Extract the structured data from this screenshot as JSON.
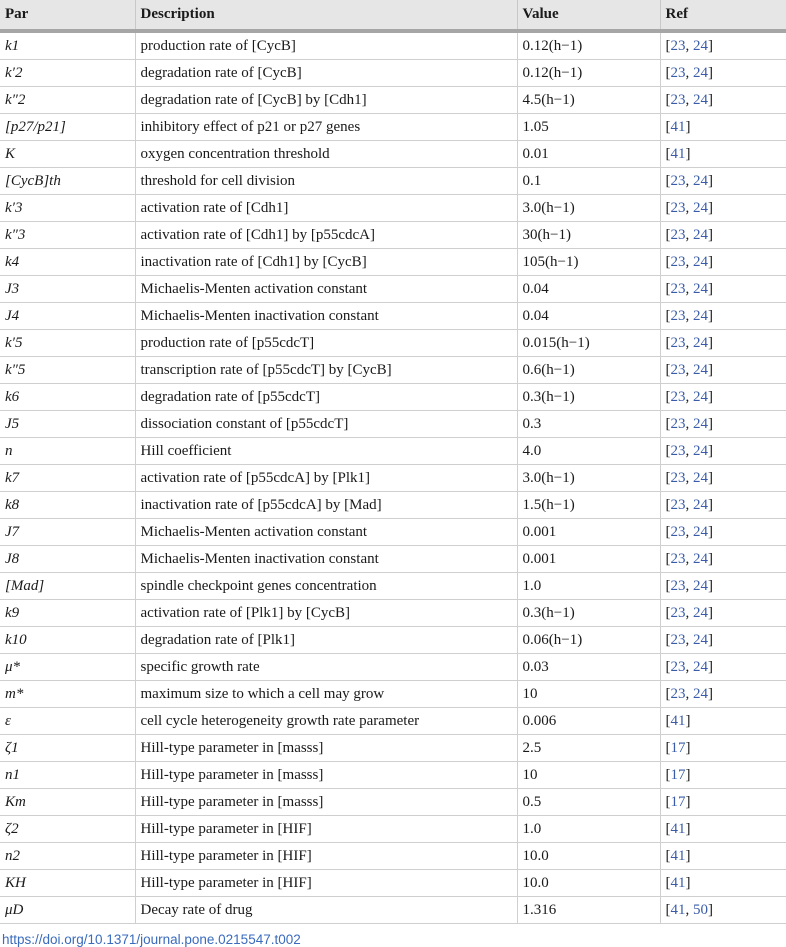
{
  "headers": [
    "Par",
    "Description",
    "Value",
    "Ref"
  ],
  "rows": [
    {
      "par": "k1",
      "desc": "production rate of [CycB]",
      "val": "0.12(h−1)",
      "ref": [
        "23",
        "24"
      ]
    },
    {
      "par": "k′2",
      "desc": "degradation rate of [CycB]",
      "val": "0.12(h−1)",
      "ref": [
        "23",
        "24"
      ]
    },
    {
      "par": "k″2",
      "desc": "degradation rate of [CycB] by [Cdh1]",
      "val": "4.5(h−1)",
      "ref": [
        "23",
        "24"
      ]
    },
    {
      "par": "[p27/p21]",
      "desc": "inhibitory effect of p21 or p27 genes",
      "val": "1.05",
      "ref": [
        "41"
      ]
    },
    {
      "par": "K",
      "desc": "oxygen concentration threshold",
      "val": "0.01",
      "ref": [
        "41"
      ]
    },
    {
      "par": "[CycB]th",
      "desc": "threshold for cell division",
      "val": "0.1",
      "ref": [
        "23",
        "24"
      ]
    },
    {
      "par": "k′3",
      "desc": "activation rate of [Cdh1]",
      "val": "3.0(h−1)",
      "ref": [
        "23",
        "24"
      ]
    },
    {
      "par": "k″3",
      "desc": "activation rate of [Cdh1] by [p55cdcA]",
      "val": "30(h−1)",
      "ref": [
        "23",
        "24"
      ]
    },
    {
      "par": "k4",
      "desc": "inactivation rate of [Cdh1] by [CycB]",
      "val": "105(h−1)",
      "ref": [
        "23",
        "24"
      ]
    },
    {
      "par": "J3",
      "desc": "Michaelis-Menten activation constant",
      "val": "0.04",
      "ref": [
        "23",
        "24"
      ]
    },
    {
      "par": "J4",
      "desc": "Michaelis-Menten inactivation constant",
      "val": "0.04",
      "ref": [
        "23",
        "24"
      ]
    },
    {
      "par": "k′5",
      "desc": "production rate of [p55cdcT]",
      "val": "0.015(h−1)",
      "ref": [
        "23",
        "24"
      ]
    },
    {
      "par": "k″5",
      "desc": "transcription rate of [p55cdcT] by [CycB]",
      "val": "0.6(h−1)",
      "ref": [
        "23",
        "24"
      ]
    },
    {
      "par": "k6",
      "desc": "degradation rate of [p55cdcT]",
      "val": "0.3(h−1)",
      "ref": [
        "23",
        "24"
      ]
    },
    {
      "par": "J5",
      "desc": "dissociation constant of [p55cdcT]",
      "val": "0.3",
      "ref": [
        "23",
        "24"
      ]
    },
    {
      "par": "n",
      "desc": "Hill coefficient",
      "val": "4.0",
      "ref": [
        "23",
        "24"
      ]
    },
    {
      "par": "k7",
      "desc": "activation rate of [p55cdcA] by [Plk1]",
      "val": "3.0(h−1)",
      "ref": [
        "23",
        "24"
      ]
    },
    {
      "par": "k8",
      "desc": "inactivation rate of [p55cdcA] by [Mad]",
      "val": "1.5(h−1)",
      "ref": [
        "23",
        "24"
      ]
    },
    {
      "par": "J7",
      "desc": "Michaelis-Menten activation constant",
      "val": "0.001",
      "ref": [
        "23",
        "24"
      ]
    },
    {
      "par": "J8",
      "desc": "Michaelis-Menten inactivation constant",
      "val": "0.001",
      "ref": [
        "23",
        "24"
      ]
    },
    {
      "par": "[Mad]",
      "desc": "spindle checkpoint genes concentration",
      "val": "1.0",
      "ref": [
        "23",
        "24"
      ]
    },
    {
      "par": "k9",
      "desc": "activation rate of [Plk1] by [CycB]",
      "val": "0.3(h−1)",
      "ref": [
        "23",
        "24"
      ]
    },
    {
      "par": "k10",
      "desc": "degradation rate of [Plk1]",
      "val": "0.06(h−1)",
      "ref": [
        "23",
        "24"
      ]
    },
    {
      "par": "μ*",
      "desc": "specific growth rate",
      "val": "0.03",
      "ref": [
        "23",
        "24"
      ]
    },
    {
      "par": "m*",
      "desc": "maximum size to which a cell may grow",
      "val": "10",
      "ref": [
        "23",
        "24"
      ]
    },
    {
      "par": "ε",
      "desc": "cell cycle heterogeneity growth rate parameter",
      "val": "0.006",
      "ref": [
        "41"
      ]
    },
    {
      "par": "ζ1",
      "desc": "Hill-type parameter in [masss]",
      "val": "2.5",
      "ref": [
        "17"
      ]
    },
    {
      "par": "n1",
      "desc": "Hill-type parameter in [masss]",
      "val": "10",
      "ref": [
        "17"
      ]
    },
    {
      "par": "Km",
      "desc": "Hill-type parameter in [masss]",
      "val": "0.5",
      "ref": [
        "17"
      ]
    },
    {
      "par": "ζ2",
      "desc": "Hill-type parameter in [HIF]",
      "val": "1.0",
      "ref": [
        "41"
      ]
    },
    {
      "par": "n2",
      "desc": "Hill-type parameter in [HIF]",
      "val": "10.0",
      "ref": [
        "41"
      ]
    },
    {
      "par": "KH",
      "desc": "Hill-type parameter in [HIF]",
      "val": "10.0",
      "ref": [
        "41"
      ]
    },
    {
      "par": "μD",
      "desc": "Decay rate of drug",
      "val": "1.316",
      "ref": [
        "41",
        "50"
      ]
    }
  ],
  "doi": "https://doi.org/10.1371/journal.pone.0215547.t002",
  "colors": {
    "header_bg": "#e6e6e6",
    "link": "#3a5ca8",
    "doi": "#3a6bbd"
  }
}
